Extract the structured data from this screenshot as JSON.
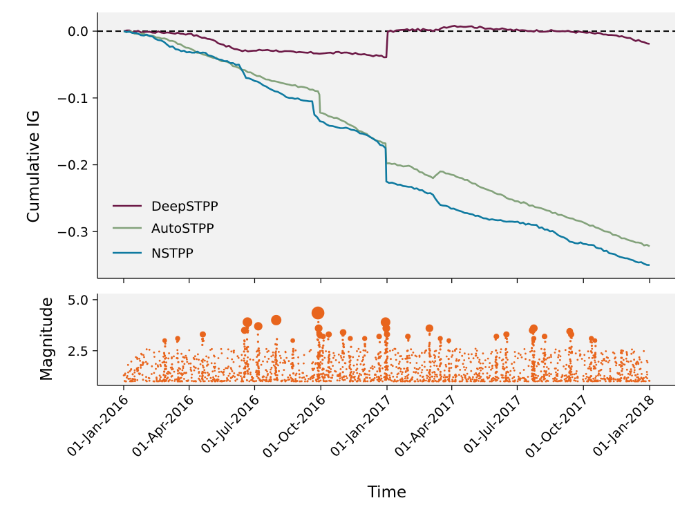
{
  "chart_data": [
    {
      "type": "line",
      "ylabel": "Cumulative IG",
      "xlabel": "",
      "ylim": [
        -0.37,
        0.028
      ],
      "yticks": [
        0.0,
        -0.1,
        -0.2,
        -0.3
      ],
      "ytick_labels": [
        "0.0",
        "−0.1",
        "−0.2",
        "−0.3"
      ],
      "x_start": "2016-01-01",
      "x_end": "2018-01-01",
      "reference_line": {
        "y": 0.0,
        "style": "dashed",
        "color": "#000000"
      },
      "legend": {
        "placement": "lower-left",
        "entries": [
          "DeepSTPP",
          "AutoSTPP",
          "NSTPP"
        ]
      },
      "series": [
        {
          "name": "DeepSTPP",
          "color": "#6d1a47",
          "points": [
            [
              0,
              0.0
            ],
            [
              60,
              -0.002
            ],
            [
              90,
              -0.004
            ],
            [
              120,
              -0.012
            ],
            [
              150,
              -0.025
            ],
            [
              165,
              -0.03
            ],
            [
              200,
              -0.028
            ],
            [
              240,
              -0.032
            ],
            [
              280,
              -0.033
            ],
            [
              310,
              -0.032
            ],
            [
              330,
              -0.035
            ],
            [
              355,
              -0.037
            ],
            [
              365,
              -0.039
            ],
            [
              366,
              -0.02
            ],
            [
              367,
              -0.001
            ],
            [
              390,
              0.002
            ],
            [
              420,
              0.002
            ],
            [
              430,
              0.0
            ],
            [
              445,
              0.006
            ],
            [
              460,
              0.008
            ],
            [
              480,
              0.007
            ],
            [
              510,
              0.004
            ],
            [
              550,
              0.001
            ],
            [
              610,
              0.0
            ],
            [
              640,
              -0.002
            ],
            [
              670,
              -0.005
            ],
            [
              700,
              -0.01
            ],
            [
              731,
              -0.019
            ]
          ]
        },
        {
          "name": "AutoSTPP",
          "color": "#83a27b",
          "points": [
            [
              0,
              0.0
            ],
            [
              30,
              -0.005
            ],
            [
              60,
              -0.012
            ],
            [
              90,
              -0.025
            ],
            [
              110,
              -0.035
            ],
            [
              140,
              -0.045
            ],
            [
              160,
              -0.055
            ],
            [
              185,
              -0.067
            ],
            [
              210,
              -0.075
            ],
            [
              230,
              -0.08
            ],
            [
              255,
              -0.085
            ],
            [
              270,
              -0.09
            ],
            [
              272,
              -0.095
            ],
            [
              273,
              -0.122
            ],
            [
              300,
              -0.132
            ],
            [
              330,
              -0.15
            ],
            [
              350,
              -0.163
            ],
            [
              364,
              -0.168
            ],
            [
              365,
              -0.198
            ],
            [
              400,
              -0.203
            ],
            [
              430,
              -0.22
            ],
            [
              440,
              -0.21
            ],
            [
              470,
              -0.22
            ],
            [
              500,
              -0.235
            ],
            [
              540,
              -0.252
            ],
            [
              580,
              -0.265
            ],
            [
              620,
              -0.28
            ],
            [
              660,
              -0.295
            ],
            [
              700,
              -0.312
            ],
            [
              731,
              -0.322
            ]
          ]
        },
        {
          "name": "NSTPP",
          "color": "#0f7aa0",
          "points": [
            [
              0,
              0.0
            ],
            [
              40,
              -0.008
            ],
            [
              60,
              -0.02
            ],
            [
              80,
              -0.03
            ],
            [
              110,
              -0.032
            ],
            [
              140,
              -0.045
            ],
            [
              160,
              -0.05
            ],
            [
              170,
              -0.07
            ],
            [
              190,
              -0.078
            ],
            [
              210,
              -0.09
            ],
            [
              230,
              -0.1
            ],
            [
              262,
              -0.105
            ],
            [
              265,
              -0.125
            ],
            [
              273,
              -0.135
            ],
            [
              290,
              -0.142
            ],
            [
              320,
              -0.148
            ],
            [
              345,
              -0.16
            ],
            [
              364,
              -0.175
            ],
            [
              365,
              -0.225
            ],
            [
              400,
              -0.233
            ],
            [
              430,
              -0.245
            ],
            [
              440,
              -0.26
            ],
            [
              470,
              -0.27
            ],
            [
              500,
              -0.28
            ],
            [
              540,
              -0.285
            ],
            [
              570,
              -0.29
            ],
            [
              600,
              -0.302
            ],
            [
              620,
              -0.315
            ],
            [
              650,
              -0.32
            ],
            [
              660,
              -0.325
            ],
            [
              690,
              -0.338
            ],
            [
              700,
              -0.34
            ],
            [
              731,
              -0.35
            ]
          ]
        }
      ]
    },
    {
      "type": "scatter",
      "ylabel": "Magnitude",
      "xlabel": "Time",
      "ylim": [
        0.8,
        5.3
      ],
      "yticks": [
        5.0,
        2.5
      ],
      "ytick_labels": [
        "5.0",
        "2.5"
      ],
      "color": "#e8651d",
      "xtick_labels": [
        "01-Jan-2016",
        "01-Apr-2016",
        "01-Jul-2016",
        "01-Oct-2016",
        "01-Jan-2017",
        "01-Apr-2017",
        "01-Jul-2017",
        "01-Oct-2017",
        "01-Jan-2018"
      ],
      "xtick_days": [
        0,
        91,
        182,
        274,
        366,
        456,
        547,
        639,
        731
      ],
      "points": [
        [
          57,
          3.0
        ],
        [
          75,
          3.1
        ],
        [
          110,
          3.3
        ],
        [
          168,
          3.5
        ],
        [
          172,
          3.9
        ],
        [
          187,
          3.7
        ],
        [
          212,
          4.0
        ],
        [
          235,
          3.0
        ],
        [
          270,
          4.35
        ],
        [
          271,
          3.6
        ],
        [
          272,
          3.3
        ],
        [
          277,
          3.2
        ],
        [
          285,
          3.3
        ],
        [
          305,
          3.4
        ],
        [
          315,
          3.1
        ],
        [
          335,
          3.1
        ],
        [
          355,
          3.2
        ],
        [
          364,
          3.9
        ],
        [
          365,
          3.6
        ],
        [
          366,
          3.3
        ],
        [
          395,
          3.2
        ],
        [
          425,
          3.6
        ],
        [
          440,
          3.1
        ],
        [
          452,
          3.0
        ],
        [
          518,
          3.2
        ],
        [
          532,
          3.3
        ],
        [
          570,
          3.1
        ],
        [
          568,
          3.5
        ],
        [
          570,
          3.6
        ],
        [
          585,
          3.2
        ],
        [
          620,
          3.45
        ],
        [
          622,
          3.3
        ],
        [
          650,
          3.1
        ],
        [
          655,
          3.0
        ],
        [
          692,
          2.5
        ]
      ]
    }
  ]
}
